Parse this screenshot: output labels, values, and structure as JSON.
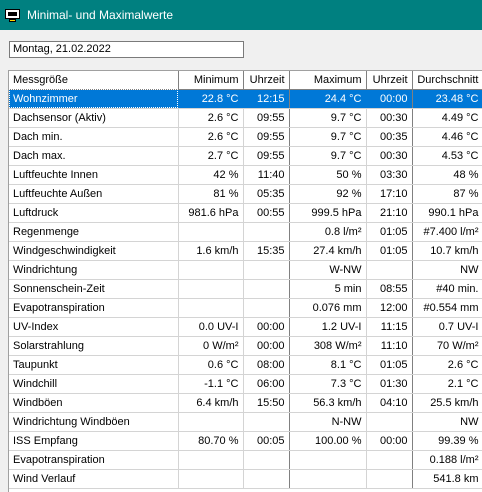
{
  "window": {
    "title": "Minimal- und Maximalwerte"
  },
  "date_field": {
    "value": "Montag, 21.02.2022"
  },
  "table": {
    "columns": [
      "Messgröße",
      "Minimum",
      "Uhrzeit",
      "Maximum",
      "Uhrzeit",
      "Durchschnitt"
    ],
    "rows": [
      [
        "Wohnzimmer",
        "22.8 °C",
        "12:15",
        "24.4 °C",
        "00:00",
        "23.48 °C"
      ],
      [
        "Dachsensor (Aktiv)",
        "2.6 °C",
        "09:55",
        "9.7 °C",
        "00:30",
        "4.49 °C"
      ],
      [
        "Dach min.",
        "2.6 °C",
        "09:55",
        "9.7 °C",
        "00:35",
        "4.46 °C"
      ],
      [
        "Dach max.",
        "2.7 °C",
        "09:55",
        "9.7 °C",
        "00:30",
        "4.53 °C"
      ],
      [
        "Luftfeuchte Innen",
        "42 %",
        "11:40",
        "50 %",
        "03:30",
        "48 %"
      ],
      [
        "Luftfeuchte Außen",
        "81 %",
        "05:35",
        "92 %",
        "17:10",
        "87 %"
      ],
      [
        "Luftdruck",
        "981.6 hPa",
        "00:55",
        "999.5 hPa",
        "21:10",
        "990.1 hPa"
      ],
      [
        "Regenmenge",
        "",
        "",
        "0.8 l/m²",
        "01:05",
        "#7.400 l/m²"
      ],
      [
        "Windgeschwindigkeit",
        "1.6 km/h",
        "15:35",
        "27.4 km/h",
        "01:05",
        "10.7 km/h"
      ],
      [
        "Windrichtung",
        "",
        "",
        "W-NW",
        "",
        "NW"
      ],
      [
        "Sonnenschein-Zeit",
        "",
        "",
        "5 min",
        "08:55",
        "#40 min."
      ],
      [
        "Evapotranspiration",
        "",
        "",
        "0.076 mm",
        "12:00",
        "#0.554 mm"
      ],
      [
        "UV-Index",
        "0.0 UV-I",
        "00:00",
        "1.2 UV-I",
        "11:15",
        "0.7 UV-I"
      ],
      [
        "Solarstrahlung",
        "0 W/m²",
        "00:00",
        "308 W/m²",
        "11:10",
        "70 W/m²"
      ],
      [
        "Taupunkt",
        "0.6 °C",
        "08:00",
        "8.1 °C",
        "01:05",
        "2.6 °C"
      ],
      [
        "Windchill",
        "-1.1 °C",
        "06:00",
        "7.3 °C",
        "01:30",
        "2.1 °C"
      ],
      [
        "Windböen",
        "6.4 km/h",
        "15:50",
        "56.3 km/h",
        "04:10",
        "25.5 km/h"
      ],
      [
        "Windrichtung Windböen",
        "",
        "",
        "N-NW",
        "",
        "NW"
      ],
      [
        "ISS Empfang",
        "80.70 %",
        "00:05",
        "100.00 %",
        "00:00",
        "99.39 %"
      ],
      [
        "Evapotranspiration",
        "",
        "",
        "",
        "",
        "0.188 l/m²"
      ],
      [
        "Wind Verlauf",
        "",
        "",
        "",
        "",
        "541.8 km"
      ]
    ],
    "selected_row": 0
  }
}
